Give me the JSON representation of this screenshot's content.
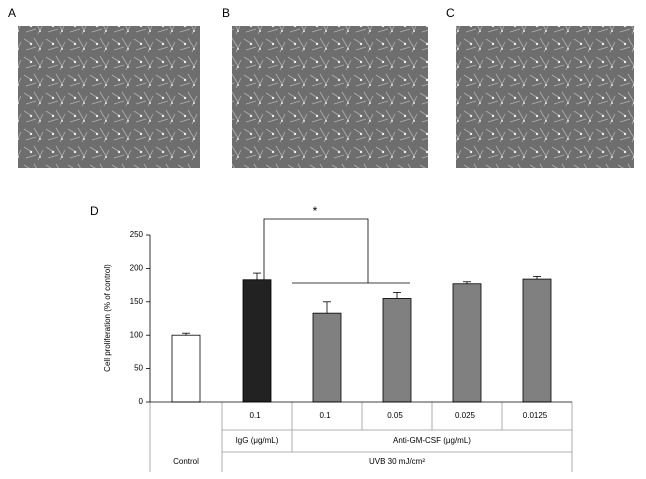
{
  "panels": [
    "A",
    "B",
    "C",
    "D"
  ],
  "chart_data": {
    "type": "bar",
    "ylabel": "Cell proliferation (% of control)",
    "categories": [
      null,
      "0.1",
      "0.1",
      "0.05",
      "0.025",
      "0.0125"
    ],
    "values": [
      100,
      183,
      133,
      155,
      177,
      184
    ],
    "errors": [
      3,
      10,
      17,
      9,
      3,
      4
    ],
    "colors": [
      "#ffffff",
      "#222222",
      "#808080",
      "#808080",
      "#808080",
      "#808080"
    ],
    "ylim": [
      0,
      250
    ],
    "yticks": [
      0,
      50,
      100,
      150,
      200,
      250
    ],
    "groups": [
      "IgG (μg/mL)",
      "Anti-GM-CSF (μg/mL)",
      "Control",
      "UVB 30 mJ/cm²"
    ],
    "annotation": "*"
  }
}
